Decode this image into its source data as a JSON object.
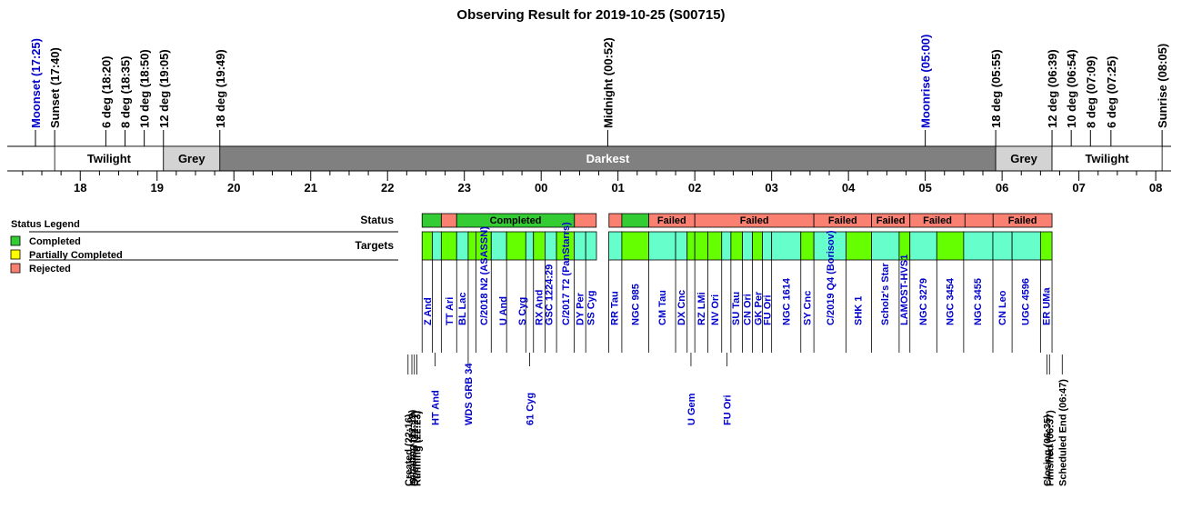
{
  "title": "Observing Result for 2019-10-25 (S00715)",
  "colors": {
    "completed": "#33cc33",
    "partial": "#ffff00",
    "rejected": "#fa8072",
    "target_completed": "#66ff00",
    "target_rejected": "#66ffcc",
    "grey": "#d3d3d3",
    "darkest": "#808080",
    "blue_text": "#0000cc",
    "black_text": "#000000"
  },
  "chart_data": {
    "type": "timeline",
    "x_unit": "hour of night (24h+)",
    "xlim": [
      17.05,
      32.2
    ],
    "hour_ticks": [
      {
        "h": 18,
        "label": "18"
      },
      {
        "h": 19,
        "label": "19"
      },
      {
        "h": 20,
        "label": "20"
      },
      {
        "h": 21,
        "label": "21"
      },
      {
        "h": 22,
        "label": "22"
      },
      {
        "h": 23,
        "label": "23"
      },
      {
        "h": 24,
        "label": "00"
      },
      {
        "h": 25,
        "label": "01"
      },
      {
        "h": 26,
        "label": "02"
      },
      {
        "h": 27,
        "label": "03"
      },
      {
        "h": 28,
        "label": "04"
      },
      {
        "h": 29,
        "label": "05"
      },
      {
        "h": 30,
        "label": "06"
      },
      {
        "h": 31,
        "label": "07"
      },
      {
        "h": 32,
        "label": "08"
      }
    ],
    "sun_events": [
      {
        "time": 17.417,
        "label": "Moonset (17:25)",
        "color": "blue"
      },
      {
        "time": 17.667,
        "label": "Sunset (17:40)",
        "color": "black"
      },
      {
        "time": 18.333,
        "label": "6 deg (18:20)",
        "color": "black"
      },
      {
        "time": 18.583,
        "label": "8 deg (18:35)",
        "color": "black"
      },
      {
        "time": 18.833,
        "label": "10 deg (18:50)",
        "color": "black"
      },
      {
        "time": 19.083,
        "label": "12 deg (19:05)",
        "color": "black"
      },
      {
        "time": 19.817,
        "label": "18 deg (19:49)",
        "color": "black"
      },
      {
        "time": 24.867,
        "label": "Midnight (00:52)",
        "color": "black"
      },
      {
        "time": 29.0,
        "label": "Moonrise (05:00)",
        "color": "blue"
      },
      {
        "time": 29.917,
        "label": "18 deg (05:55)",
        "color": "black"
      },
      {
        "time": 30.65,
        "label": "12 deg (06:39)",
        "color": "black"
      },
      {
        "time": 30.9,
        "label": "10 deg (06:54)",
        "color": "black"
      },
      {
        "time": 31.15,
        "label": "8 deg (07:09)",
        "color": "black"
      },
      {
        "time": 31.417,
        "label": "6 deg (07:25)",
        "color": "black"
      },
      {
        "time": 32.083,
        "label": "Sunrise (08:05)",
        "color": "black"
      }
    ],
    "sky_bands": [
      {
        "start": 17.667,
        "end": 19.083,
        "label": "Twilight",
        "kind": "twilight"
      },
      {
        "start": 19.083,
        "end": 19.817,
        "label": "Grey",
        "kind": "grey"
      },
      {
        "start": 19.817,
        "end": 29.917,
        "label": "Darkest",
        "kind": "darkest"
      },
      {
        "start": 29.917,
        "end": 30.65,
        "label": "Grey",
        "kind": "grey"
      },
      {
        "start": 30.65,
        "end": 32.083,
        "label": "Twilight",
        "kind": "twilight"
      }
    ],
    "legend": {
      "title": "Status Legend",
      "items": [
        {
          "label": "Completed",
          "status": "completed"
        },
        {
          "label": "Partially Completed",
          "status": "partial"
        },
        {
          "label": "Rejected",
          "status": "rejected"
        }
      ]
    },
    "row_labels": {
      "status": "Status",
      "targets": "Targets"
    },
    "status_segments": [
      {
        "start": 22.45,
        "end": 22.7,
        "status": "completed",
        "label": ""
      },
      {
        "start": 22.7,
        "end": 22.9,
        "status": "rejected",
        "label": ""
      },
      {
        "start": 22.9,
        "end": 24.433,
        "status": "completed",
        "label": "Completed"
      },
      {
        "start": 24.433,
        "end": 24.717,
        "status": "rejected",
        "label": ""
      },
      {
        "start": 24.883,
        "end": 25.05,
        "status": "rejected",
        "label": ""
      },
      {
        "start": 25.05,
        "end": 25.4,
        "status": "completed",
        "label": ""
      },
      {
        "start": 25.4,
        "end": 26.0,
        "status": "rejected",
        "label": "Failed"
      },
      {
        "start": 26.0,
        "end": 27.55,
        "status": "rejected",
        "label": "Failed"
      },
      {
        "start": 27.55,
        "end": 28.3,
        "status": "rejected",
        "label": "Failed"
      },
      {
        "start": 28.3,
        "end": 28.8,
        "status": "rejected",
        "label": "Failed"
      },
      {
        "start": 28.8,
        "end": 29.517,
        "status": "rejected",
        "label": "Failed"
      },
      {
        "start": 29.517,
        "end": 29.883,
        "status": "rejected",
        "label": ""
      },
      {
        "start": 29.883,
        "end": 30.65,
        "status": "rejected",
        "label": "Failed"
      }
    ],
    "target_blocks": [
      {
        "start": 22.45,
        "end": 22.583,
        "status": "completed"
      },
      {
        "start": 22.583,
        "end": 22.7,
        "status": "rejected"
      },
      {
        "start": 22.7,
        "end": 22.9,
        "status": "completed"
      },
      {
        "start": 22.9,
        "end": 23.05,
        "status": "rejected"
      },
      {
        "start": 23.05,
        "end": 23.15,
        "status": "completed"
      },
      {
        "start": 23.15,
        "end": 23.35,
        "status": "completed"
      },
      {
        "start": 23.35,
        "end": 23.55,
        "status": "rejected"
      },
      {
        "start": 23.55,
        "end": 23.8,
        "status": "completed"
      },
      {
        "start": 23.8,
        "end": 23.9,
        "status": "rejected"
      },
      {
        "start": 23.9,
        "end": 24.05,
        "status": "completed"
      },
      {
        "start": 24.05,
        "end": 24.2,
        "status": "rejected"
      },
      {
        "start": 24.2,
        "end": 24.43,
        "status": "completed"
      },
      {
        "start": 24.43,
        "end": 24.58,
        "status": "rejected"
      },
      {
        "start": 24.58,
        "end": 24.72,
        "status": "rejected"
      },
      {
        "start": 24.88,
        "end": 25.05,
        "status": "rejected"
      },
      {
        "start": 25.05,
        "end": 25.4,
        "status": "completed"
      },
      {
        "start": 25.4,
        "end": 25.75,
        "status": "rejected"
      },
      {
        "start": 25.75,
        "end": 25.9,
        "status": "rejected"
      },
      {
        "start": 25.9,
        "end": 26.0,
        "status": "completed"
      },
      {
        "start": 26.0,
        "end": 26.17,
        "status": "completed"
      },
      {
        "start": 26.17,
        "end": 26.35,
        "status": "completed"
      },
      {
        "start": 26.35,
        "end": 26.47,
        "status": "rejected"
      },
      {
        "start": 26.47,
        "end": 26.62,
        "status": "completed"
      },
      {
        "start": 26.62,
        "end": 26.75,
        "status": "rejected"
      },
      {
        "start": 26.75,
        "end": 26.88,
        "status": "completed"
      },
      {
        "start": 26.88,
        "end": 27.0,
        "status": "rejected"
      },
      {
        "start": 27.0,
        "end": 27.38,
        "status": "rejected"
      },
      {
        "start": 27.38,
        "end": 27.55,
        "status": "completed"
      },
      {
        "start": 27.55,
        "end": 27.97,
        "status": "rejected"
      },
      {
        "start": 27.97,
        "end": 28.3,
        "status": "completed"
      },
      {
        "start": 28.3,
        "end": 28.66,
        "status": "rejected"
      },
      {
        "start": 28.66,
        "end": 28.8,
        "status": "completed"
      },
      {
        "start": 28.8,
        "end": 29.15,
        "status": "rejected"
      },
      {
        "start": 29.15,
        "end": 29.5,
        "status": "completed"
      },
      {
        "start": 29.5,
        "end": 29.88,
        "status": "rejected"
      },
      {
        "start": 29.88,
        "end": 30.13,
        "status": "rejected"
      },
      {
        "start": 30.13,
        "end": 30.5,
        "status": "rejected"
      },
      {
        "start": 30.5,
        "end": 30.65,
        "status": "completed"
      }
    ],
    "target_labels_upper": [
      {
        "time": 22.52,
        "label": "Z And"
      },
      {
        "time": 22.8,
        "label": "TT Ari"
      },
      {
        "time": 22.97,
        "label": "BL Lac"
      },
      {
        "time": 23.25,
        "label": "C/2018 N2 (ASASSN)"
      },
      {
        "time": 23.5,
        "label": "U And"
      },
      {
        "time": 23.75,
        "label": "S Cyg"
      },
      {
        "time": 23.97,
        "label": "RX And"
      },
      {
        "time": 24.1,
        "label": "GSC 1224:29"
      },
      {
        "time": 24.32,
        "label": "C/2017 T2 (PanStarrs)"
      },
      {
        "time": 24.5,
        "label": "DY Per"
      },
      {
        "time": 24.64,
        "label": "SS Cyg"
      },
      {
        "time": 24.95,
        "label": "RR Tau"
      },
      {
        "time": 25.22,
        "label": "NGC 985"
      },
      {
        "time": 25.57,
        "label": "CM Tau"
      },
      {
        "time": 25.82,
        "label": "DX Cnc"
      },
      {
        "time": 26.08,
        "label": "RZ LMi"
      },
      {
        "time": 26.26,
        "label": "NV Ori"
      },
      {
        "time": 26.53,
        "label": "SU Tau"
      },
      {
        "time": 26.68,
        "label": "CN Ori"
      },
      {
        "time": 26.82,
        "label": "GK Per"
      },
      {
        "time": 26.94,
        "label": "FU Ori"
      },
      {
        "time": 27.19,
        "label": "NGC 1614"
      },
      {
        "time": 27.46,
        "label": "SY Cnc"
      },
      {
        "time": 27.76,
        "label": "C/2019 Q4 (Borisov)"
      },
      {
        "time": 28.12,
        "label": "SHK 1"
      },
      {
        "time": 28.47,
        "label": "Scholz's Star"
      },
      {
        "time": 28.72,
        "label": "LAMOST-HVS1"
      },
      {
        "time": 28.97,
        "label": "NGC 3279"
      },
      {
        "time": 29.32,
        "label": "NGC 3454"
      },
      {
        "time": 29.68,
        "label": "NGC 3455"
      },
      {
        "time": 30.0,
        "label": "CN Leo"
      },
      {
        "time": 30.3,
        "label": "UGC 4596"
      },
      {
        "time": 30.57,
        "label": "ER UMa"
      }
    ],
    "target_labels_lower": [
      {
        "time": 22.62,
        "label": "HT And"
      },
      {
        "time": 23.05,
        "label": "WDS GRB 34"
      },
      {
        "time": 23.85,
        "label": "61 Cyg"
      },
      {
        "time": 25.95,
        "label": "U Gem"
      },
      {
        "time": 26.42,
        "label": "FU Ori"
      }
    ],
    "process_events": [
      {
        "time": 22.267,
        "label": "Created (22:16)"
      },
      {
        "time": 22.317,
        "label": "Initiating (22:19)"
      },
      {
        "time": 22.35,
        "label": "Opening (22:21)"
      },
      {
        "time": 22.383,
        "label": "Running (22:23)"
      },
      {
        "time": 30.583,
        "label": "Closing (06:35)"
      },
      {
        "time": 30.617,
        "label": "Finished (06:37)"
      },
      {
        "time": 30.783,
        "label": "Scheduled End (06:47)"
      }
    ]
  }
}
